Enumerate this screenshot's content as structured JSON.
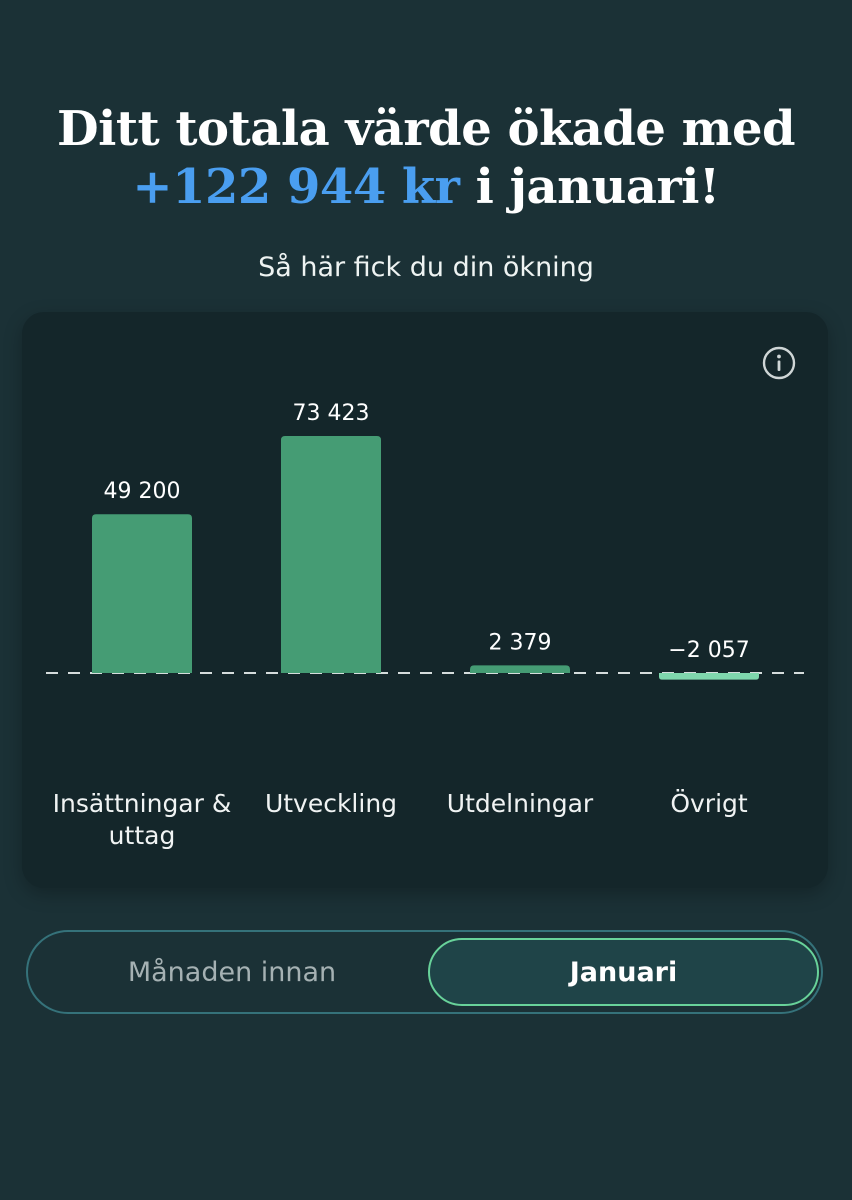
{
  "header": {
    "headline_line1": "Ditt totala värde ökade med",
    "headline_amount": "+122 944 kr",
    "headline_rest": " i januari!",
    "subtitle": "Så här fick du din ökning"
  },
  "colors": {
    "background": "#1b3136",
    "card": "#14262a",
    "amount": "#4a9ef0",
    "bar_positive": "#459c74",
    "bar_negative": "#7fd7ad",
    "toggle_active_border": "#68d29a"
  },
  "icons": {
    "info": "info-circle-icon"
  },
  "chart_data": {
    "type": "bar",
    "categories": [
      "Insättningar & uttag",
      "Utveckling",
      "Utdelningar",
      "Övrigt"
    ],
    "values": [
      49200,
      73423,
      2379,
      -2057
    ],
    "value_labels": [
      "49 200",
      "73 423",
      "2 379",
      "−2 057"
    ],
    "baseline": 0,
    "baseline_style": "dashed",
    "grid": false,
    "legend": "none"
  },
  "toggle": {
    "options": [
      "Månaden innan",
      "Januari"
    ],
    "selected": "Januari"
  }
}
